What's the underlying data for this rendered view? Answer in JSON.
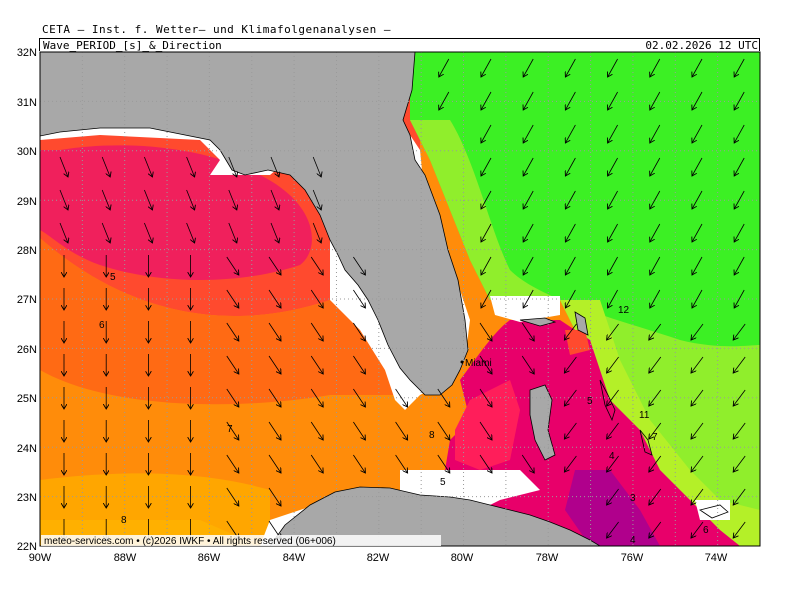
{
  "header": {
    "title": "CETA — Inst. f. Wetter— und Klimafolgenanalysen —",
    "parameter": "Wave_PERIOD_[s]_&_Direction",
    "datetime": "02.02.2026 12 UTC"
  },
  "axes": {
    "lat_labels": [
      "32N",
      "31N",
      "30N",
      "29N",
      "28N",
      "27N",
      "26N",
      "25N",
      "24N",
      "23N",
      "22N"
    ],
    "lon_labels": [
      "90W",
      "88W",
      "86W",
      "84W",
      "82W",
      "80W",
      "78W",
      "76W",
      "74W"
    ]
  },
  "contour_labels": [
    "5",
    "6",
    "7",
    "8",
    "8",
    "5",
    "5",
    "4",
    "3",
    "4",
    "12",
    "11",
    "7",
    "6"
  ],
  "place_label": "Miami",
  "copyright": "meteo-services.com • (c)2026 IWKF • All rights reserved (06+006)",
  "legend_colors": {
    "period_3_4": "#e8006a",
    "period_4_5": "#ff1e5a",
    "period_5_6": "#ff4a2e",
    "period_6_7": "#ff6a14",
    "period_7_8": "#ff8c0a",
    "period_8_9": "#ffa600",
    "period_10_11": "#b4f028",
    "period_11_12": "#90ee2c",
    "period_12_plus": "#3cf024",
    "land": "#a8a8a8",
    "no_data": "#ffffff"
  }
}
